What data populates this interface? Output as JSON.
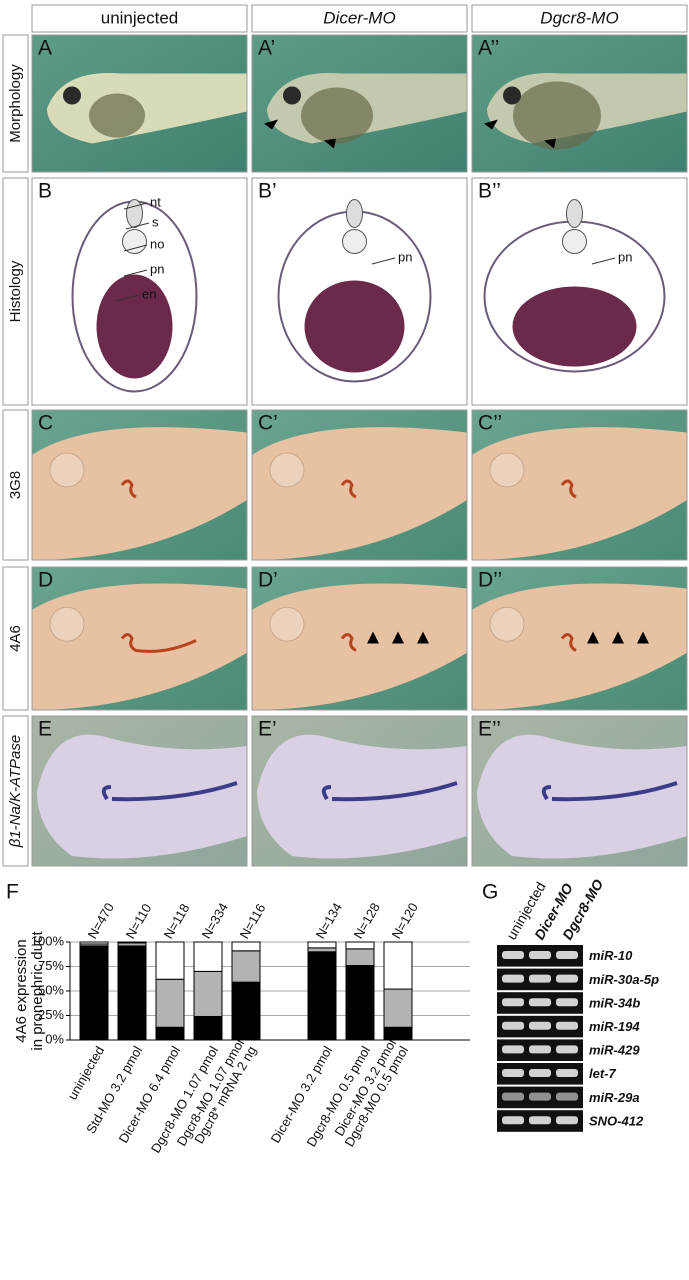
{
  "column_headers": [
    "uninjected",
    "Dicer-MO",
    "Dgcr8-MO"
  ],
  "row_labels": [
    "Morphology",
    "Histology",
    "3G8",
    "4A6",
    "β1-Na/K-ATPase"
  ],
  "panels": [
    [
      "A",
      "A’",
      "A’’"
    ],
    [
      "B",
      "B’",
      "B’’"
    ],
    [
      "C",
      "C’",
      "C’’"
    ],
    [
      "D",
      "D’",
      "D’’"
    ],
    [
      "E",
      "E’",
      "E’’"
    ]
  ],
  "histology_labels": [
    [
      "nt",
      "s",
      "no",
      "pn",
      "en"
    ],
    [
      "pn"
    ],
    [
      "pn"
    ]
  ],
  "panel_letters": [
    "F",
    "G"
  ],
  "chart_data": {
    "type": "bar",
    "stacked": true,
    "ylabel": [
      "4A6 expression",
      "in pronephric duct"
    ],
    "categories": [
      "uninjected",
      "Std-MO 3.2 pmol",
      "Dicer-MO 6.4 pmol",
      "Dgcr8-MO 1.07 pmol",
      "Dgcr8-MO 1.07 pmol\nDgcr8* mRNA 2 ng",
      null,
      "Dicer-MO 3.2 pmol",
      "Dgcr8-MO 0.5 pmol",
      "Dicer-MO 3.2 pmol\nDgcr8-MO 0.5 pmol"
    ],
    "n_labels": [
      "N=470",
      "N=110",
      "N=118",
      "N=334",
      "N=116",
      null,
      "N=134",
      "N=128",
      "N=120"
    ],
    "series": [
      {
        "color": "#000000",
        "values": [
          96,
          96,
          13,
          24,
          59,
          null,
          90,
          76,
          13
        ]
      },
      {
        "color": "#b3b3b3",
        "values": [
          2,
          3,
          49,
          46,
          32,
          null,
          4,
          17,
          39
        ]
      },
      {
        "color": "#ffffff",
        "values": [
          2,
          1,
          38,
          30,
          9,
          null,
          6,
          7,
          48
        ]
      }
    ],
    "ylim": [
      0,
      100
    ],
    "yticks": [
      {
        "value": 0,
        "label": "0%"
      },
      {
        "value": 25,
        "label": "25%"
      },
      {
        "value": 50,
        "label": "50%"
      },
      {
        "value": 75,
        "label": "75%"
      },
      {
        "value": 100,
        "label": "100%"
      }
    ],
    "grid": true
  },
  "gel": {
    "lanes": [
      "uninjected",
      "Dicer-MO",
      "Dgcr8-MO"
    ],
    "rows": [
      "miR-10",
      "miR-30a-5p",
      "miR-34b",
      "miR-194",
      "miR-429",
      "let-7",
      "miR-29a",
      "SNO-412"
    ]
  }
}
